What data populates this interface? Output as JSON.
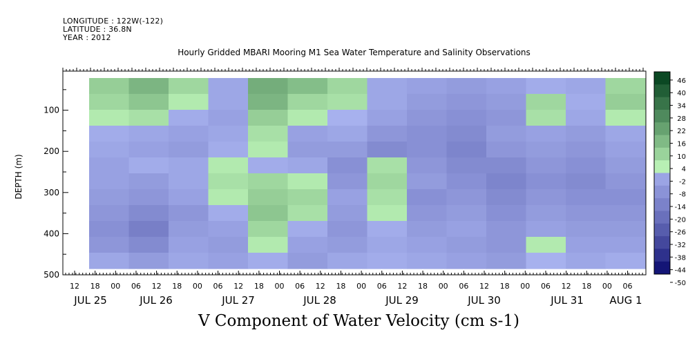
{
  "header": {
    "longitude": "LONGITUDE : 122W(-122)",
    "latitude": "LATITUDE : 36.8N",
    "year": "YEAR : 2012"
  },
  "chart_data": {
    "type": "heatmap",
    "title": "Hourly Gridded MBARI Mooring M1 Sea Water Temperature and Salinity Observations",
    "xlabel": "V Component of Water Velocity (cm s-1)",
    "ylabel": "DEPTH (m)",
    "ylim": [
      500,
      0
    ],
    "y_axis_inverted": true,
    "y_ticks": [
      100,
      200,
      300,
      400,
      500
    ],
    "y_tick_labels": [
      "100",
      "200",
      "300",
      "400",
      "500"
    ],
    "x_hour_ticks": [
      "12",
      "18",
      "00",
      "06",
      "12",
      "18",
      "00",
      "06",
      "12",
      "18",
      "00",
      "06",
      "12",
      "18",
      "00",
      "06",
      "12",
      "18",
      "00",
      "06",
      "12",
      "18",
      "00",
      "06",
      "12",
      "18",
      "00",
      "06"
    ],
    "x_date_labels": [
      "JUL 25",
      "JUL 26",
      "JUL 27",
      "JUL 28",
      "JUL 29",
      "JUL 30",
      "JUL 31",
      "AUG  1"
    ],
    "x_range": [
      "2012-07-25T09:00",
      "2012-08-01T12:00"
    ],
    "colorbar": {
      "levels": [
        -50,
        -44,
        -38,
        -32,
        -26,
        -20,
        -14,
        -8,
        -2,
        4,
        10,
        16,
        22,
        28,
        34,
        40,
        46
      ],
      "level_labels": [
        "46",
        "40",
        "34",
        "28",
        "22",
        "16",
        "10",
        "4",
        "-2",
        "-8",
        "-14",
        "-20",
        "-26",
        "-32",
        "-38",
        "-44",
        "-50"
      ],
      "color_low": "#000066",
      "color_mid_negative": "#aab4f0",
      "color_mid_positive": "#b8f0b4",
      "color_high": "#003d1a"
    },
    "depth_bins": [
      20,
      60,
      100,
      140,
      180,
      220,
      260,
      300,
      340,
      380,
      420,
      460
    ],
    "time_columns": [
      "JUL 25 18",
      "JUL 26 06",
      "JUL 26 18",
      "JUL 27 06",
      "JUL 27 18",
      "JUL 28 06",
      "JUL 28 18",
      "JUL 29 06",
      "JUL 29 18",
      "JUL 30 06",
      "JUL 30 18",
      "JUL 31 06",
      "JUL 31 18",
      "AUG 1 06"
    ],
    "values": [
      [
        8,
        14,
        6,
        -4,
        16,
        12,
        6,
        -4,
        -6,
        -8,
        -6,
        -2,
        -4,
        6
      ],
      [
        6,
        10,
        2,
        -4,
        14,
        6,
        4,
        -4,
        -8,
        -10,
        -8,
        6,
        -2,
        8
      ],
      [
        2,
        4,
        -2,
        -6,
        8,
        2,
        0,
        -6,
        -10,
        -12,
        -10,
        4,
        -4,
        2
      ],
      [
        -2,
        -4,
        -6,
        -4,
        4,
        -6,
        -4,
        -10,
        -12,
        -14,
        -8,
        -6,
        -8,
        -4
      ],
      [
        -4,
        -6,
        -8,
        -2,
        2,
        -8,
        -8,
        -14,
        -12,
        -16,
        -10,
        -8,
        -10,
        -6
      ],
      [
        -6,
        -2,
        -4,
        2,
        -2,
        -4,
        -12,
        4,
        -10,
        -14,
        -14,
        -10,
        -12,
        -8
      ],
      [
        -6,
        -8,
        -4,
        4,
        6,
        2,
        -10,
        6,
        -8,
        -12,
        -16,
        -12,
        -14,
        -10
      ],
      [
        -8,
        -10,
        -6,
        2,
        8,
        6,
        -6,
        4,
        -12,
        -10,
        -14,
        -10,
        -12,
        -12
      ],
      [
        -10,
        -14,
        -10,
        -2,
        10,
        4,
        -8,
        2,
        -10,
        -8,
        -12,
        -8,
        -10,
        -10
      ],
      [
        -12,
        -18,
        -8,
        -6,
        6,
        -2,
        -10,
        -2,
        -8,
        -6,
        -10,
        -6,
        -8,
        -8
      ],
      [
        -10,
        -14,
        -6,
        -8,
        2,
        -6,
        -8,
        -4,
        -6,
        -8,
        -10,
        2,
        -6,
        -6
      ],
      [
        -4,
        -8,
        -4,
        -6,
        -2,
        -8,
        -4,
        -2,
        -4,
        -6,
        -8,
        0,
        -4,
        -2
      ]
    ]
  }
}
